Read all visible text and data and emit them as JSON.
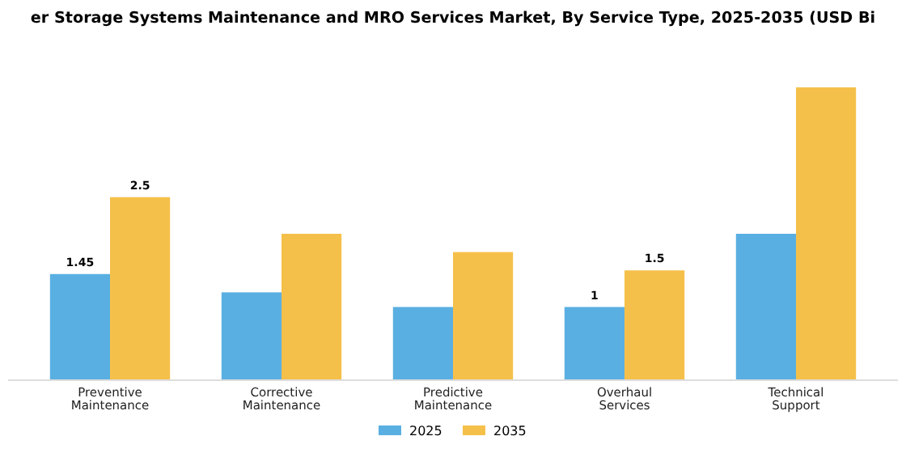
{
  "chart_data": {
    "type": "bar",
    "title": "er Storage Systems Maintenance and MRO Services Market, By Service Type, 2025-2035 (USD Bi",
    "categories": [
      "Preventive Maintenance",
      "Corrective Maintenance",
      "Predictive Maintenance",
      "Overhaul Services",
      "Technical Support"
    ],
    "series": [
      {
        "name": "2025",
        "color": "#5aafe2",
        "values": [
          1.45,
          1.2,
          1.0,
          1,
          2.0
        ],
        "value_labels": [
          "1.45",
          null,
          null,
          "1",
          null
        ]
      },
      {
        "name": "2035",
        "color": "#f5c04a",
        "values": [
          2.5,
          2.0,
          1.75,
          1.5,
          4.0
        ],
        "value_labels": [
          "2.5",
          null,
          null,
          "1.5",
          null
        ]
      }
    ],
    "legend": "bottom"
  }
}
